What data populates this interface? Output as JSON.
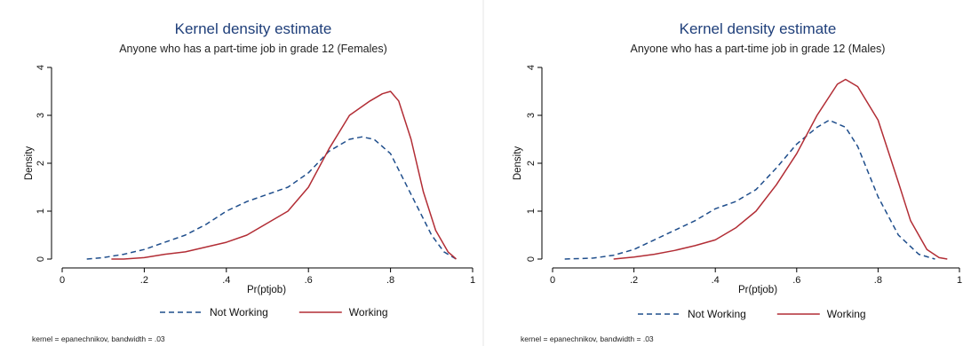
{
  "colors": {
    "not_working": "#1f4e8c",
    "working": "#b22d35",
    "title": "#1f3f7a",
    "axis": "#000000"
  },
  "chart_data": [
    {
      "type": "line",
      "title": "Kernel density estimate",
      "subtitle": "Anyone who has a part-time job in grade 12  (Females)",
      "xlabel": "Pr(ptjob)",
      "ylabel": "Density",
      "xlim": [
        0,
        1
      ],
      "ylim": [
        0,
        4
      ],
      "x_ticks": [
        0,
        0.2,
        0.4,
        0.6,
        0.8,
        1
      ],
      "x_tick_labels": [
        "0",
        ".2",
        ".4",
        ".6",
        ".8",
        "1"
      ],
      "y_ticks": [
        0,
        1,
        2,
        3,
        4
      ],
      "y_tick_labels": [
        "0",
        "1",
        "2",
        "3",
        "4"
      ],
      "grid": false,
      "legend_position": "bottom",
      "note": "kernel = epanechnikov, bandwidth = .03",
      "series": [
        {
          "name": "Not Working",
          "style": "dashed",
          "x": [
            0.06,
            0.1,
            0.15,
            0.2,
            0.25,
            0.3,
            0.35,
            0.4,
            0.45,
            0.5,
            0.55,
            0.6,
            0.65,
            0.7,
            0.73,
            0.76,
            0.8,
            0.85,
            0.9,
            0.93,
            0.96
          ],
          "y": [
            0.0,
            0.03,
            0.1,
            0.2,
            0.35,
            0.5,
            0.72,
            1.0,
            1.2,
            1.35,
            1.5,
            1.8,
            2.25,
            2.5,
            2.55,
            2.5,
            2.2,
            1.35,
            0.5,
            0.15,
            0.0
          ]
        },
        {
          "name": "Working",
          "style": "solid",
          "x": [
            0.12,
            0.15,
            0.2,
            0.25,
            0.3,
            0.35,
            0.4,
            0.45,
            0.5,
            0.55,
            0.6,
            0.65,
            0.7,
            0.75,
            0.78,
            0.8,
            0.82,
            0.85,
            0.88,
            0.91,
            0.94,
            0.96
          ],
          "y": [
            0.0,
            0.0,
            0.03,
            0.1,
            0.15,
            0.25,
            0.35,
            0.5,
            0.75,
            1.0,
            1.5,
            2.3,
            3.0,
            3.3,
            3.45,
            3.5,
            3.3,
            2.5,
            1.4,
            0.6,
            0.15,
            0.0
          ]
        }
      ]
    },
    {
      "type": "line",
      "title": "Kernel density estimate",
      "subtitle": "Anyone who has a part-time job in grade 12 (Males)",
      "xlabel": "Pr(ptjob)",
      "ylabel": "Density",
      "xlim": [
        0,
        1
      ],
      "ylim": [
        0,
        4
      ],
      "x_ticks": [
        0,
        0.2,
        0.4,
        0.6,
        0.8,
        1
      ],
      "x_tick_labels": [
        "0",
        ".2",
        ".4",
        ".6",
        ".8",
        "1"
      ],
      "y_ticks": [
        0,
        1,
        2,
        3,
        4
      ],
      "y_tick_labels": [
        "0",
        "1",
        "2",
        "3",
        "4"
      ],
      "grid": false,
      "legend_position": "bottom",
      "note": "kernel = epanechnikov, bandwidth = .03",
      "series": [
        {
          "name": "Not Working",
          "style": "dashed",
          "x": [
            0.03,
            0.1,
            0.15,
            0.2,
            0.25,
            0.3,
            0.35,
            0.4,
            0.45,
            0.5,
            0.55,
            0.6,
            0.65,
            0.68,
            0.72,
            0.75,
            0.8,
            0.85,
            0.9,
            0.94
          ],
          "y": [
            0.0,
            0.02,
            0.08,
            0.2,
            0.4,
            0.6,
            0.8,
            1.05,
            1.2,
            1.45,
            1.9,
            2.4,
            2.75,
            2.9,
            2.75,
            2.35,
            1.3,
            0.5,
            0.1,
            0.0
          ]
        },
        {
          "name": "Working",
          "style": "solid",
          "x": [
            0.15,
            0.2,
            0.25,
            0.3,
            0.35,
            0.4,
            0.45,
            0.5,
            0.55,
            0.6,
            0.65,
            0.7,
            0.72,
            0.75,
            0.8,
            0.85,
            0.88,
            0.92,
            0.95,
            0.97
          ],
          "y": [
            0.0,
            0.04,
            0.1,
            0.18,
            0.28,
            0.4,
            0.65,
            1.0,
            1.55,
            2.2,
            3.0,
            3.65,
            3.75,
            3.6,
            2.9,
            1.6,
            0.8,
            0.2,
            0.03,
            0.0
          ]
        }
      ]
    }
  ]
}
